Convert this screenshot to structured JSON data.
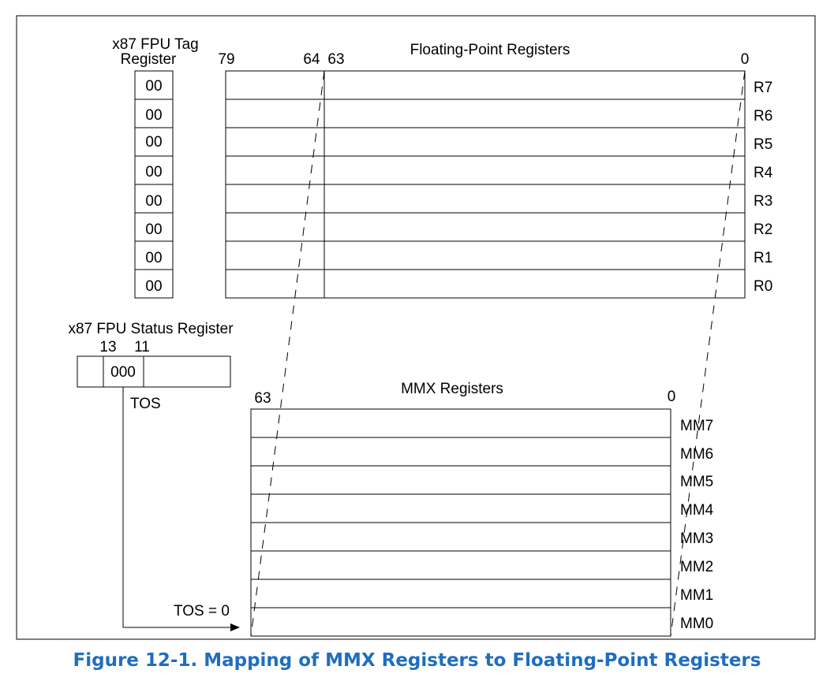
{
  "caption": "Figure 12-1.  Mapping of MMX Registers to Floating-Point Registers",
  "tag_register": {
    "title_line1": "x87 FPU Tag",
    "title_line2": "Register",
    "entries": [
      "00",
      "00",
      "00",
      "00",
      "00",
      "00",
      "00",
      "00"
    ]
  },
  "fp_registers": {
    "title": "Floating-Point Registers",
    "bit_labels": {
      "b79": "79",
      "b64": "64",
      "b63": "63",
      "b0": "0"
    },
    "rows": [
      "R7",
      "R6",
      "R5",
      "R4",
      "R3",
      "R2",
      "R1",
      "R0"
    ]
  },
  "status_register": {
    "title": "x87 FPU Status Register",
    "bit13": "13",
    "bit11": "11",
    "field_value": "000",
    "tos_label": "TOS"
  },
  "mmx_registers": {
    "title": "MMX Registers",
    "bit63": "63",
    "bit0": "0",
    "rows": [
      "MM7",
      "MM6",
      "MM5",
      "MM4",
      "MM3",
      "MM2",
      "MM1",
      "MM0"
    ]
  },
  "tos_zero_label": "TOS = 0"
}
